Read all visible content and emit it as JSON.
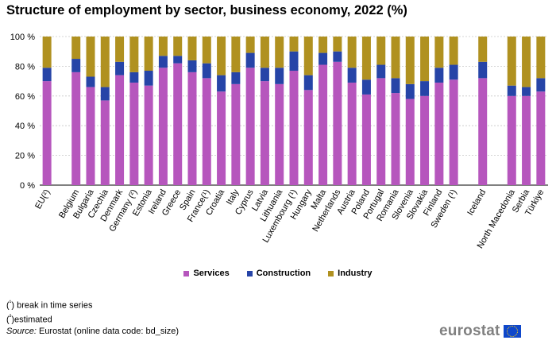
{
  "chart_data": {
    "type": "bar",
    "stacked": true,
    "title": "Structure of employment by sector, business economy, 2022 (%)",
    "xlabel": "",
    "ylabel": "",
    "ylim": [
      0,
      100
    ],
    "yticks": [
      0,
      20,
      40,
      60,
      80,
      100
    ],
    "ytick_labels": [
      "0 %",
      "20 %",
      "40 %",
      "60 %",
      "80 %",
      "100 %"
    ],
    "categories": [
      "EU(²)",
      "Belgium",
      "Bulgaria",
      "Czechia",
      "Denmark",
      "Germany (²)",
      "Estonia",
      "Ireland",
      "Greece",
      "Spain",
      "France(¹)",
      "Croatia",
      "Italy",
      "Cyprus",
      "Latvia",
      "Lithuania",
      "Luxembourg (¹)",
      "Hungary",
      "Malta",
      "Netherlands",
      "Austria",
      "Poland",
      "Portugal",
      "Romania",
      "Slovenia",
      "Slovakia",
      "Finland",
      "Sweden (¹)",
      "Iceland",
      "North Macedonia",
      "Serbia",
      "Türkiye"
    ],
    "series": [
      {
        "name": "Services",
        "color": "#b656bd",
        "values": [
          70,
          76,
          66,
          57,
          74,
          69,
          67,
          79,
          82,
          76,
          72,
          63,
          68,
          79,
          70,
          68,
          77,
          64,
          81,
          83,
          69,
          61,
          72,
          62,
          58,
          60,
          69,
          71,
          72,
          60,
          60,
          63
        ]
      },
      {
        "name": "Construction",
        "color": "#2644a7",
        "values": [
          9,
          9,
          7,
          9,
          9,
          7,
          10,
          8,
          5,
          8,
          10,
          11,
          8,
          10,
          9,
          11,
          13,
          10,
          8,
          7,
          10,
          10,
          9,
          10,
          10,
          10,
          10,
          10,
          11,
          7,
          6,
          9
        ]
      },
      {
        "name": "Industry",
        "color": "#b09120",
        "values": [
          21,
          15,
          27,
          34,
          17,
          24,
          23,
          13,
          13,
          16,
          18,
          26,
          24,
          11,
          21,
          21,
          10,
          26,
          11,
          10,
          21,
          29,
          19,
          28,
          32,
          30,
          21,
          19,
          17,
          33,
          34,
          28
        ]
      }
    ],
    "legend_position": "bottom-center"
  },
  "footnotes": {
    "note1_mark": "¹",
    "note1_text": " break in time series",
    "note2_mark": "²",
    "note2_text": "estimated",
    "source_label": "Source:",
    "source_text": " Eurostat (online data code: bd_size)"
  },
  "logo": {
    "text": "eurostat",
    "flag_icon": "eu-flag-icon",
    "colors": {
      "flag": "#0e47cb",
      "stars": "#ffd617"
    }
  }
}
